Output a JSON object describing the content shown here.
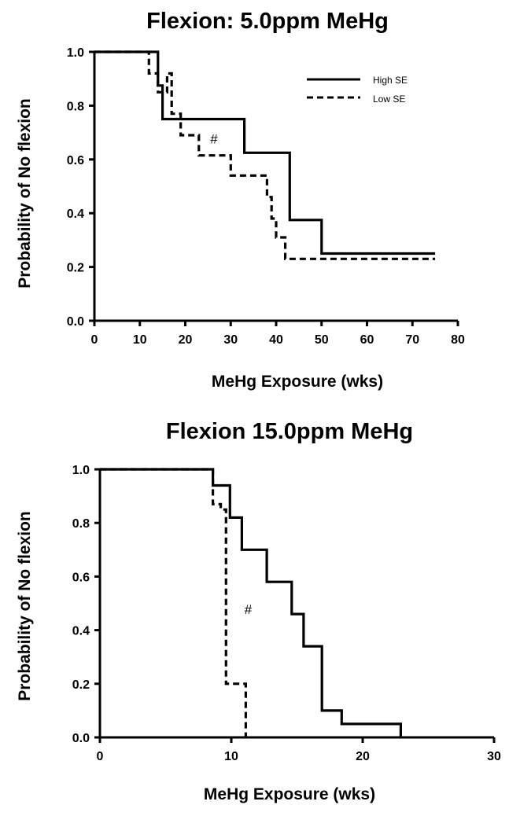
{
  "chart_data": [
    {
      "type": "line",
      "title": "Flexion:  5.0ppm MeHg",
      "xlabel": "MeHg Exposure (wks)",
      "ylabel": "Probability of No flexion",
      "xlim": [
        0,
        80
      ],
      "ylim": [
        0,
        1.0
      ],
      "xticks": [
        0,
        10,
        20,
        30,
        40,
        50,
        60,
        70,
        80
      ],
      "xtick_labels": [
        "0",
        "10",
        "20",
        "30",
        "40",
        "50",
        "60",
        "70",
        "80"
      ],
      "yticks": [
        0,
        0.2,
        0.4,
        0.6,
        0.8,
        1.0
      ],
      "ytick_labels": [
        "0.0",
        "0.2",
        "0.4",
        "0.6",
        "0.8",
        "1.0"
      ],
      "grid": false,
      "legend_position": "top-right",
      "series": [
        {
          "name": "High SE",
          "style": "solid",
          "color": "#000000",
          "x": [
            0,
            14,
            14,
            15,
            15,
            33,
            33,
            43,
            43,
            50,
            50,
            75
          ],
          "y": [
            1.0,
            1.0,
            0.875,
            0.875,
            0.75,
            0.75,
            0.625,
            0.625,
            0.375,
            0.375,
            0.25,
            0.25
          ]
        },
        {
          "name": "Low SE",
          "style": "dashed",
          "color": "#000000",
          "x": [
            0,
            12,
            12,
            14,
            14,
            16,
            16,
            17,
            17,
            19,
            19,
            23,
            23,
            30,
            30,
            38,
            38,
            39,
            39,
            40,
            40,
            42,
            42,
            44,
            44,
            75
          ],
          "y": [
            1.0,
            1.0,
            0.92,
            0.92,
            0.85,
            0.85,
            0.92,
            0.92,
            0.77,
            0.77,
            0.69,
            0.69,
            0.615,
            0.615,
            0.54,
            0.54,
            0.46,
            0.46,
            0.38,
            0.38,
            0.31,
            0.31,
            0.23,
            0.23,
            0.23,
            0.23
          ]
        }
      ],
      "annotations": [
        {
          "text": "#",
          "x": 25.5,
          "y": 0.66
        }
      ]
    },
    {
      "type": "line",
      "title": "Flexion 15.0ppm MeHg",
      "xlabel": "MeHg Exposure (wks)",
      "ylabel": "Probability of No flexion",
      "xlim": [
        0,
        30
      ],
      "ylim": [
        0,
        1.0
      ],
      "xticks": [
        0,
        10,
        20,
        30
      ],
      "xtick_labels": [
        "0",
        "10",
        "20",
        "30"
      ],
      "yticks": [
        0,
        0.2,
        0.4,
        0.6,
        0.8,
        1.0
      ],
      "ytick_labels": [
        "0.0",
        "0.2",
        "0.4",
        "0.6",
        "0.8",
        "1.0"
      ],
      "grid": false,
      "series": [
        {
          "style": "solid",
          "color": "#000000",
          "x": [
            0,
            8.6,
            8.6,
            9.9,
            9.9,
            10.8,
            10.8,
            11.6,
            11.6,
            12.7,
            12.7,
            14.6,
            14.6,
            15.5,
            15.5,
            16.9,
            16.9,
            18.4,
            18.4,
            22.9,
            22.9
          ],
          "y": [
            1.0,
            1.0,
            0.94,
            0.94,
            0.82,
            0.82,
            0.7,
            0.7,
            0.7,
            0.7,
            0.58,
            0.58,
            0.46,
            0.46,
            0.34,
            0.34,
            0.1,
            0.1,
            0.05,
            0.05,
            0.0
          ]
        },
        {
          "style": "dashed",
          "color": "#000000",
          "x": [
            0,
            8.6,
            8.6,
            9.2,
            9.2,
            9.6,
            9.6,
            11.1,
            11.1
          ],
          "y": [
            1.0,
            1.0,
            0.87,
            0.87,
            0.85,
            0.85,
            0.2,
            0.2,
            0.0
          ]
        }
      ],
      "annotations": [
        {
          "text": "#",
          "x": 11.0,
          "y": 0.46
        }
      ]
    }
  ]
}
